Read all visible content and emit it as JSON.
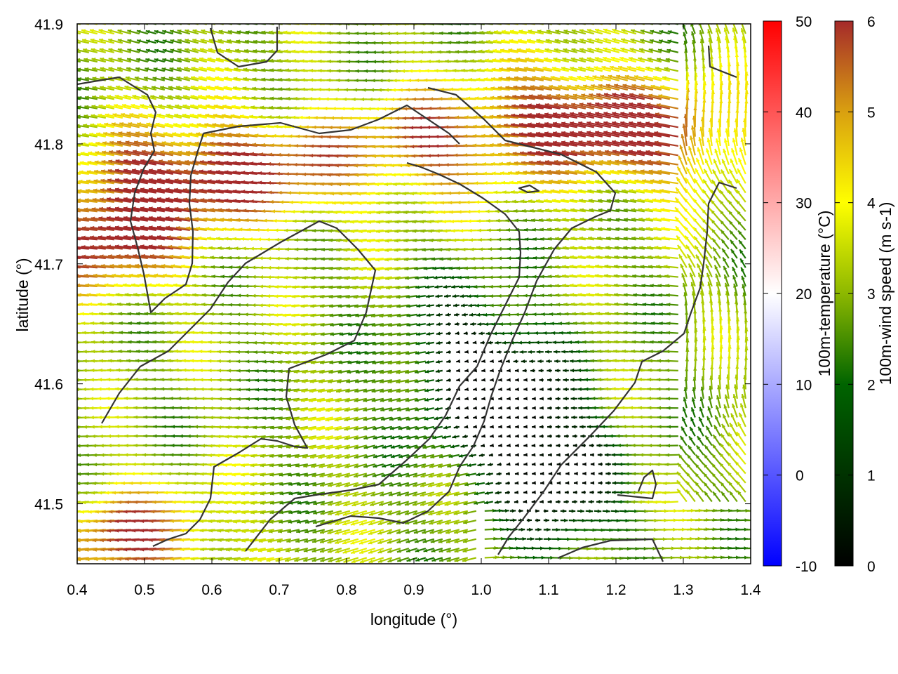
{
  "chart_data": {
    "type": "vector-field",
    "x_axis": {
      "label": "longitude (°)",
      "range": [
        0.4,
        1.4
      ],
      "ticks": [
        0.4,
        0.5,
        0.6,
        0.7,
        0.8,
        0.9,
        1.0,
        1.1,
        1.2,
        1.3,
        1.4
      ],
      "tick_labels": [
        "0.4",
        "0.5",
        "0.6",
        "0.7",
        "0.8",
        "0.9",
        "1.0",
        "1.1",
        "1.2",
        "1.3",
        "1.4"
      ]
    },
    "y_axis": {
      "label": "latitude (°)",
      "range": [
        41.45,
        41.9
      ],
      "ticks": [
        41.5,
        41.6,
        41.7,
        41.8,
        41.9
      ],
      "tick_labels": [
        "41.5",
        "41.6",
        "41.7",
        "41.8",
        "41.9"
      ]
    },
    "colorbar_temperature": {
      "label": "100m-temperature (°C)",
      "range": [
        -10,
        50
      ],
      "ticks": [
        -10,
        0,
        10,
        20,
        30,
        40,
        50
      ],
      "tick_labels": [
        "-10",
        "0",
        "10",
        "20",
        "30",
        "40",
        "50"
      ],
      "colors": [
        "#0000ff",
        "#ffffff",
        "#ff0000"
      ]
    },
    "colorbar_wind": {
      "label": "100m-wind speed (m s-1)",
      "range": [
        0,
        6
      ],
      "ticks": [
        0,
        1,
        2,
        3,
        4,
        5,
        6
      ],
      "tick_labels": [
        "0",
        "1",
        "2",
        "3",
        "4",
        "5",
        "6"
      ],
      "colors": [
        "#000000",
        "#006400",
        "#8db800",
        "#ffff00",
        "#d9a010",
        "#a52a2a"
      ]
    },
    "wind_core_strong": [
      {
        "lon": 0.45,
        "lat": 41.72,
        "speed": 6.0
      },
      {
        "lon": 0.55,
        "lat": 41.77,
        "speed": 5.8
      },
      {
        "lon": 0.72,
        "lat": 41.78,
        "speed": 5.5
      },
      {
        "lon": 0.95,
        "lat": 41.8,
        "speed": 5.6
      },
      {
        "lon": 1.15,
        "lat": 41.82,
        "speed": 6.0
      },
      {
        "lon": 1.3,
        "lat": 41.8,
        "speed": 5.2
      },
      {
        "lon": 0.5,
        "lat": 41.47,
        "speed": 5.8
      }
    ],
    "wind_calm_zone": [
      {
        "lon": 1.05,
        "lat": 41.58,
        "speed": 0.5
      },
      {
        "lon": 1.12,
        "lat": 41.52,
        "speed": 0.4
      },
      {
        "lon": 0.98,
        "lat": 41.62,
        "speed": 0.8
      }
    ],
    "grid": false,
    "legend": "right"
  }
}
